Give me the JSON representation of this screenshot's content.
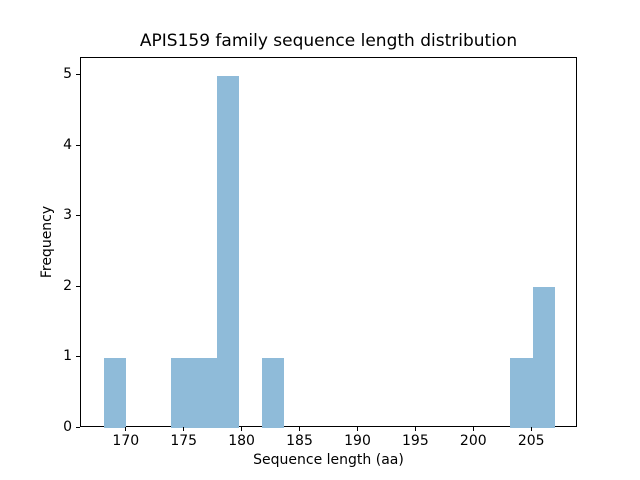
{
  "chart_data": {
    "type": "bar",
    "subtype": "histogram",
    "title": "APIS159 family sequence length distribution",
    "xlabel": "Sequence length (aa)",
    "ylabel": "Frequency",
    "bin_edges": [
      168.0,
      169.95,
      171.9,
      173.85,
      175.8,
      177.75,
      179.7,
      181.65,
      183.6,
      185.55,
      187.5,
      189.45,
      191.4,
      193.35,
      195.3,
      197.25,
      199.2,
      201.15,
      203.1,
      205.05,
      207.0
    ],
    "counts": [
      1,
      0,
      0,
      1,
      1,
      5,
      0,
      1,
      0,
      0,
      0,
      0,
      0,
      0,
      0,
      0,
      0,
      0,
      1,
      2
    ],
    "total_observations": 12,
    "x_ticks": [
      170,
      175,
      180,
      185,
      190,
      195,
      200,
      205
    ],
    "y_ticks": [
      0,
      1,
      2,
      3,
      4,
      5
    ],
    "xlim": [
      166.05,
      208.95
    ],
    "ylim": [
      0,
      5.25
    ],
    "bar_color": "#8fbbd9",
    "axis_color": "#000000",
    "background_color": "#ffffff",
    "grid": false,
    "legend_position": "none"
  }
}
